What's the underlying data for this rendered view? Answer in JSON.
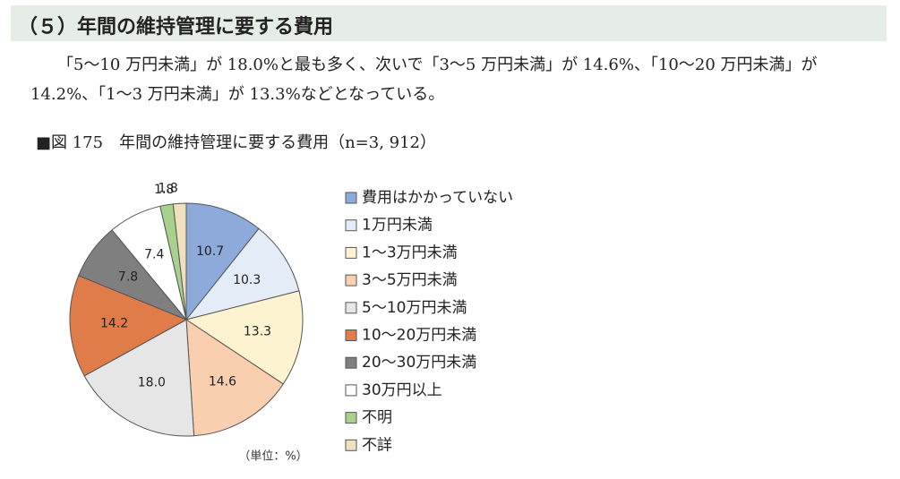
{
  "header": {
    "title": "（５）年間の維持管理に要する費用"
  },
  "paragraph": "「5～10 万円未満」が 18.0%と最も多く、次いで「3～5 万円未満」が 14.6%、「10～20 万円未満」が 14.2%、「1～3 万円未満」が 13.3%などとなっている。",
  "figure_caption": "■図 175　年間の維持管理に要する費用（n=3, 912）",
  "chart_data": {
    "type": "pie",
    "categories": [
      "費用はかかっていない",
      "1万円未満",
      "1～3万円未満",
      "3～5万円未満",
      "5～10万円未満",
      "10～20万円未満",
      "20～30万円未満",
      "30万円以上",
      "不明",
      "不詳"
    ],
    "values": [
      10.7,
      10.3,
      13.3,
      14.6,
      18.0,
      14.2,
      7.8,
      7.4,
      1.8,
      1.8
    ],
    "value_labels": [
      "10.7",
      "10.3",
      "13.3",
      "14.6",
      "18.0",
      "14.2",
      "7.8",
      "7.4",
      "1.8",
      "1.8"
    ],
    "colors": [
      "#8eaadb",
      "#e4ecf7",
      "#fdf3d0",
      "#f9cfb0",
      "#e6e6e6",
      "#e07b4a",
      "#7f7f7f",
      "#ffffff",
      "#a9d18e",
      "#efe0c0"
    ],
    "unit_note": "（単位：%）",
    "legend": "right"
  }
}
